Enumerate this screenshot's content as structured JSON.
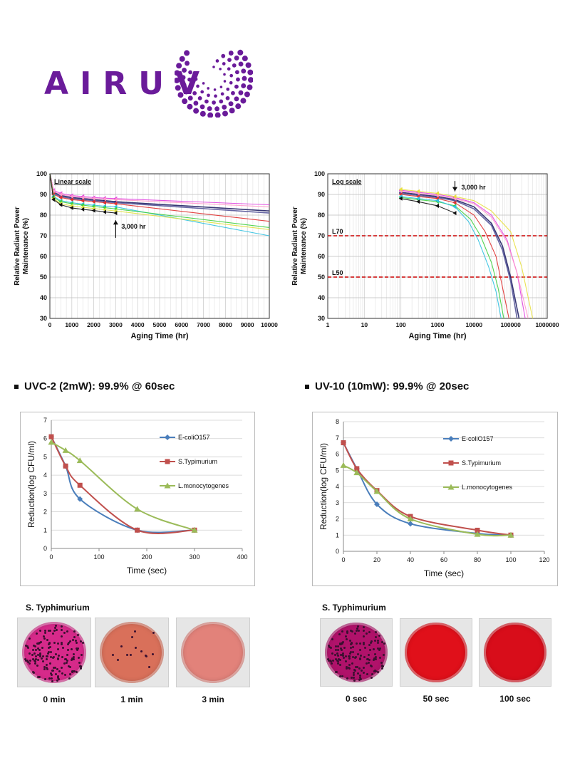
{
  "logo": {
    "text": "AIRUV",
    "color": "#6a1b9a"
  },
  "headings": {
    "left": "UVC-2  (2mW): 99.9% @ 60sec",
    "right": "UV-10 (10mW): 99.9% @ 20sec"
  },
  "plates": {
    "left": {
      "title": "S. Typhimurium",
      "items": [
        {
          "label": "0 min",
          "color": "#d62a8a",
          "colonies": "dense"
        },
        {
          "label": "1 min",
          "color": "#d9705a",
          "colonies": "sparse"
        },
        {
          "label": "3 min",
          "color": "#e2827a",
          "colonies": "none"
        }
      ]
    },
    "right": {
      "title": "S. Typhimurium",
      "items": [
        {
          "label": "0 sec",
          "color": "#b0126a",
          "colonies": "dense"
        },
        {
          "label": "50 sec",
          "color": "#e0101a",
          "colonies": "none"
        },
        {
          "label": "100 sec",
          "color": "#d80d1a",
          "colonies": "none"
        }
      ]
    }
  },
  "chart_data": [
    {
      "type": "line",
      "annotation": "Linear scale",
      "arrow_label": "3,000 hr",
      "xlabel": "Aging Time (hr)",
      "ylabel": "Relative Radiant Power Maintenance (%)",
      "xlim": [
        0,
        10000
      ],
      "ylim": [
        30,
        100
      ],
      "xticks": [
        0,
        1000,
        2000,
        3000,
        4000,
        5000,
        6000,
        7000,
        8000,
        9000,
        10000
      ],
      "yticks": [
        30,
        40,
        50,
        60,
        70,
        80,
        90,
        100
      ],
      "grid": true,
      "series": [
        {
          "color": "#222266",
          "x": [
            0,
            168,
            500,
            1000,
            1500,
            2000,
            2500,
            3000,
            10000
          ],
          "y": [
            100,
            91,
            89.5,
            88.5,
            88,
            87.5,
            87,
            86.5,
            82
          ]
        },
        {
          "color": "#555599",
          "x": [
            0,
            168,
            500,
            1000,
            1500,
            2000,
            2500,
            3000,
            10000
          ],
          "y": [
            100,
            90.5,
            89,
            88,
            87.5,
            87,
            86.5,
            86,
            81
          ]
        },
        {
          "color": "#e040e0",
          "x": [
            0,
            168,
            500,
            1000,
            1500,
            2000,
            2500,
            3000,
            10000
          ],
          "y": [
            100,
            92,
            90.5,
            89.5,
            89,
            88.5,
            88.2,
            88,
            85
          ]
        },
        {
          "color": "#ff9acb",
          "x": [
            0,
            168,
            500,
            1000,
            1500,
            2000,
            2500,
            3000,
            10000
          ],
          "y": [
            100,
            91.5,
            90,
            89,
            88.5,
            88,
            87.8,
            87.5,
            84
          ]
        },
        {
          "color": "#e03030",
          "x": [
            0,
            168,
            500,
            1000,
            1500,
            2000,
            2500,
            3000,
            10000
          ],
          "y": [
            100,
            90,
            88.5,
            87.5,
            87,
            86.5,
            86,
            85.5,
            77
          ]
        },
        {
          "color": "#30c0e0",
          "x": [
            0,
            168,
            500,
            1000,
            1500,
            2000,
            2500,
            3000,
            10000
          ],
          "y": [
            100,
            89,
            87,
            86,
            85.3,
            84.8,
            84.3,
            84,
            70
          ]
        },
        {
          "color": "#40d040",
          "x": [
            0,
            168,
            500,
            1000,
            1500,
            2000,
            2500,
            3000,
            10000
          ],
          "y": [
            100,
            88.5,
            86.5,
            85.5,
            84.8,
            84.2,
            83.6,
            83,
            74
          ]
        },
        {
          "color": "#e0e040",
          "x": [
            0,
            168,
            500,
            1000,
            1500,
            2000,
            2500,
            3000,
            10000
          ],
          "y": [
            100,
            88,
            85.5,
            84.5,
            83.8,
            83.2,
            82.6,
            82,
            73
          ]
        },
        {
          "color": "#111111",
          "x": [
            0,
            168,
            500,
            1000,
            1500,
            2000,
            2500,
            3000
          ],
          "y": [
            100,
            87.5,
            85,
            83.5,
            82.8,
            82.2,
            81.5,
            81
          ]
        }
      ]
    },
    {
      "type": "line",
      "annotation": "Log scale",
      "arrow_label": "3,000 hr",
      "xlabel": "Aging Time (hr)",
      "ylabel": "Relative Radiant Power Maintenance (%)",
      "xscale": "log",
      "xlim": [
        1,
        1000000
      ],
      "ylim": [
        30,
        100
      ],
      "xticks": [
        1,
        10,
        100,
        1000,
        10000,
        100000,
        1000000
      ],
      "xticklabels": [
        "1",
        "10",
        "100",
        "1000",
        "10000",
        "100000",
        "1000000"
      ],
      "yticks": [
        30,
        40,
        50,
        60,
        70,
        80,
        90,
        100
      ],
      "grid": true,
      "reference_lines": [
        {
          "label": "L70",
          "y": 70,
          "color": "#cc0000"
        },
        {
          "label": "L50",
          "y": 50,
          "color": "#cc0000"
        }
      ],
      "series": [
        {
          "color": "#222266",
          "x": [
            100,
            300,
            1000,
            3000,
            10000,
            30000,
            60000,
            100000,
            170000
          ],
          "y": [
            91,
            90,
            89,
            87.5,
            84,
            76,
            65,
            50,
            30
          ]
        },
        {
          "color": "#555599",
          "x": [
            100,
            300,
            1000,
            3000,
            10000,
            30000,
            60000,
            100000,
            150000
          ],
          "y": [
            90.5,
            89.5,
            88.5,
            87,
            83,
            75,
            63,
            48,
            30
          ]
        },
        {
          "color": "#e040e0",
          "x": [
            100,
            300,
            1000,
            3000,
            10000,
            30000,
            80000,
            150000,
            250000
          ],
          "y": [
            92,
            91,
            90,
            88.5,
            86,
            80,
            68,
            52,
            30
          ]
        },
        {
          "color": "#ff9acb",
          "x": [
            100,
            300,
            1000,
            3000,
            10000,
            30000,
            80000,
            150000,
            300000
          ],
          "y": [
            91.5,
            90.5,
            89.5,
            88,
            85.5,
            79,
            67,
            52,
            30
          ]
        },
        {
          "color": "#e8e040",
          "x": [
            100,
            300,
            1000,
            3000,
            10000,
            30000,
            100000,
            200000,
            400000
          ],
          "y": [
            92.5,
            91.5,
            90.5,
            89,
            87,
            82,
            72,
            55,
            30
          ]
        },
        {
          "color": "#e03030",
          "x": [
            100,
            300,
            1000,
            3000,
            10000,
            20000,
            40000,
            60000,
            90000
          ],
          "y": [
            90,
            89,
            88,
            86,
            80,
            72,
            60,
            45,
            30
          ]
        },
        {
          "color": "#40d040",
          "x": [
            100,
            300,
            1000,
            3000,
            8000,
            15000,
            30000,
            45000,
            65000
          ],
          "y": [
            88.5,
            87.5,
            86.5,
            84.5,
            78,
            70,
            57,
            45,
            30
          ]
        },
        {
          "color": "#30c0e0",
          "x": [
            100,
            300,
            1000,
            3000,
            7000,
            13000,
            25000,
            40000,
            55000
          ],
          "y": [
            89,
            88,
            87,
            84,
            77,
            68,
            55,
            43,
            30
          ]
        },
        {
          "color": "#111111",
          "x": [
            100,
            300,
            1000,
            3000
          ],
          "y": [
            88,
            86.5,
            84.5,
            81
          ]
        }
      ]
    },
    {
      "type": "line",
      "xlabel": "Time (sec)",
      "ylabel": "Reduction(log CFU/ml)",
      "xlim": [
        0,
        400
      ],
      "ylim": [
        0,
        7
      ],
      "xticks": [
        0,
        100,
        200,
        300,
        400
      ],
      "yticks": [
        0,
        1,
        2,
        3,
        4,
        5,
        6,
        7
      ],
      "legend": "right",
      "series": [
        {
          "name": "E-coliO157",
          "color": "#4a7ebb",
          "marker": "diamond",
          "x": [
            0,
            30,
            60,
            180,
            300
          ],
          "y": [
            6.1,
            4.5,
            2.7,
            1.0,
            1.0
          ]
        },
        {
          "name": "S.Typimurium",
          "color": "#c0504d",
          "marker": "square",
          "x": [
            0,
            30,
            60,
            180,
            300
          ],
          "y": [
            6.1,
            4.5,
            3.45,
            1.0,
            1.0
          ]
        },
        {
          "name": "L.monocytogenes",
          "color": "#9bbb59",
          "marker": "triangle",
          "x": [
            0,
            30,
            60,
            180,
            300
          ],
          "y": [
            5.8,
            5.35,
            4.8,
            2.15,
            1.0
          ]
        }
      ]
    },
    {
      "type": "line",
      "xlabel": "Time (sec)",
      "ylabel": "Reduction(log CFU/ml)",
      "xlim": [
        0,
        120
      ],
      "ylim": [
        0,
        8
      ],
      "xticks": [
        0,
        20,
        40,
        60,
        80,
        100,
        120
      ],
      "yticks": [
        0,
        1,
        2,
        3,
        4,
        5,
        6,
        7,
        8
      ],
      "legend": "right",
      "series": [
        {
          "name": "E-coliO157",
          "color": "#4a7ebb",
          "marker": "diamond",
          "x": [
            0,
            8,
            20,
            40,
            80,
            100
          ],
          "y": [
            6.7,
            5.1,
            2.9,
            1.7,
            1.1,
            1.0
          ]
        },
        {
          "name": "S.Typimurium",
          "color": "#c0504d",
          "marker": "square",
          "x": [
            0,
            8,
            20,
            40,
            80,
            100
          ],
          "y": [
            6.7,
            5.1,
            3.75,
            2.15,
            1.3,
            1.0
          ]
        },
        {
          "name": "L.monocytogenes",
          "color": "#9bbb59",
          "marker": "triangle",
          "x": [
            0,
            8,
            20,
            40,
            80,
            100
          ],
          "y": [
            5.3,
            4.85,
            3.7,
            2.0,
            1.05,
            1.0
          ]
        }
      ]
    }
  ]
}
